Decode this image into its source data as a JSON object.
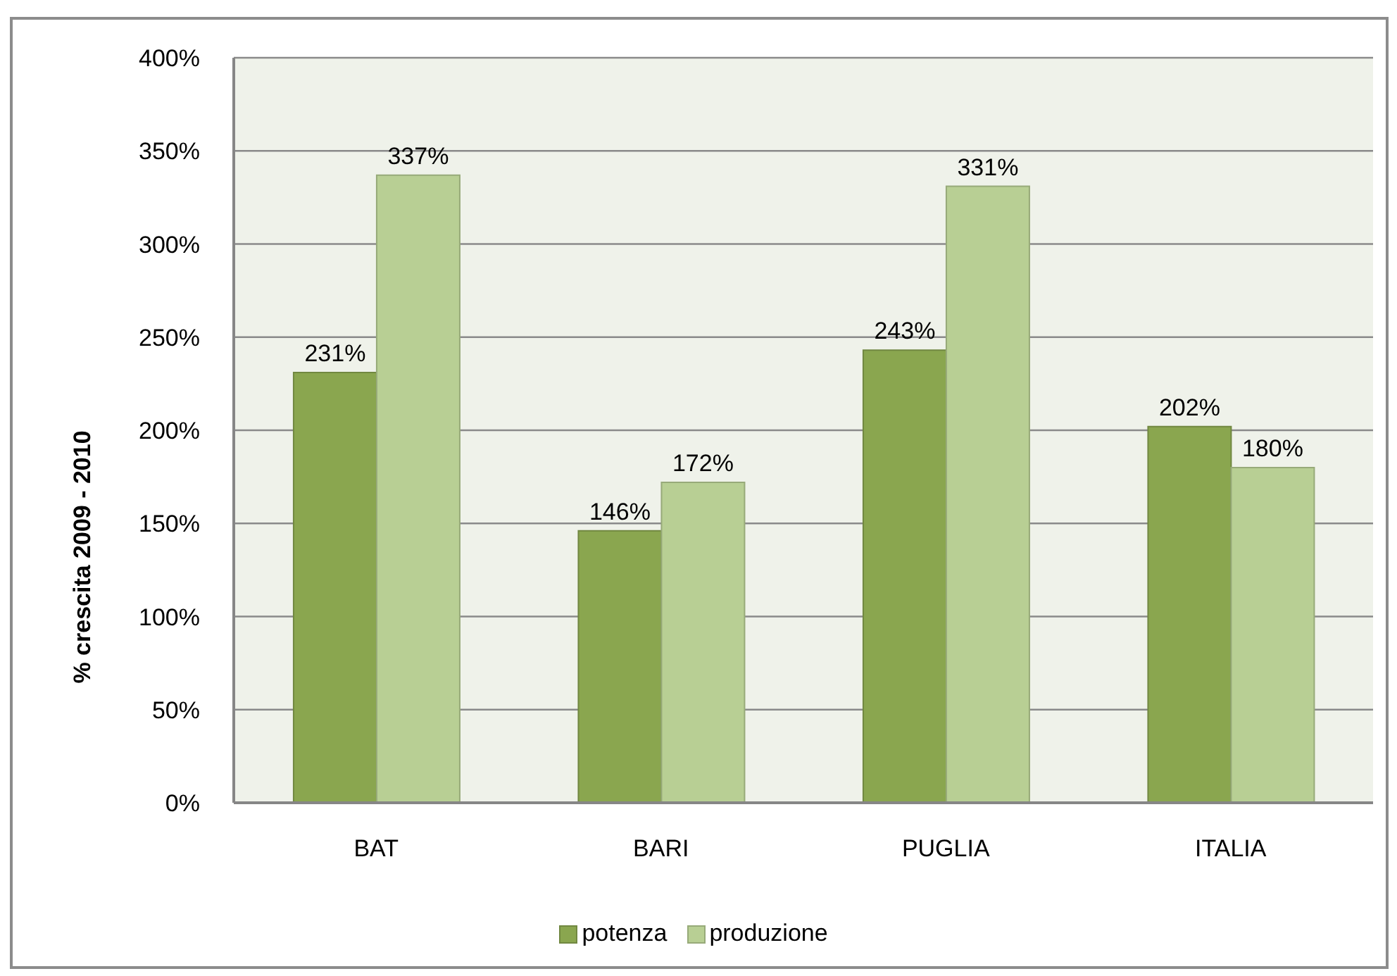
{
  "chart_data": {
    "type": "bar",
    "ylabel": "% crescita 2009 - 2010",
    "categories": [
      "BAT",
      "BARI",
      "PUGLIA",
      "ITALIA"
    ],
    "series": [
      {
        "name": "potenza",
        "color": "#8aa64f",
        "values": [
          231,
          146,
          243,
          202
        ],
        "value_labels": [
          "231%",
          "146%",
          "243%",
          "202%"
        ]
      },
      {
        "name": "produzione",
        "color": "#b8cf94",
        "values": [
          337,
          172,
          331,
          180
        ],
        "value_labels": [
          "337%",
          "172%",
          "331%",
          "180%"
        ]
      }
    ],
    "ylim": [
      0,
      400
    ],
    "yticks": [
      {
        "value": 0,
        "label": "0%"
      },
      {
        "value": 50,
        "label": "50%"
      },
      {
        "value": 100,
        "label": "100%"
      },
      {
        "value": 150,
        "label": "150%"
      },
      {
        "value": 200,
        "label": "200%"
      },
      {
        "value": 250,
        "label": "250%"
      },
      {
        "value": 300,
        "label": "300%"
      },
      {
        "value": 350,
        "label": "350%"
      },
      {
        "value": 400,
        "label": "400%"
      }
    ],
    "grid": "y",
    "legend": "bottom"
  }
}
